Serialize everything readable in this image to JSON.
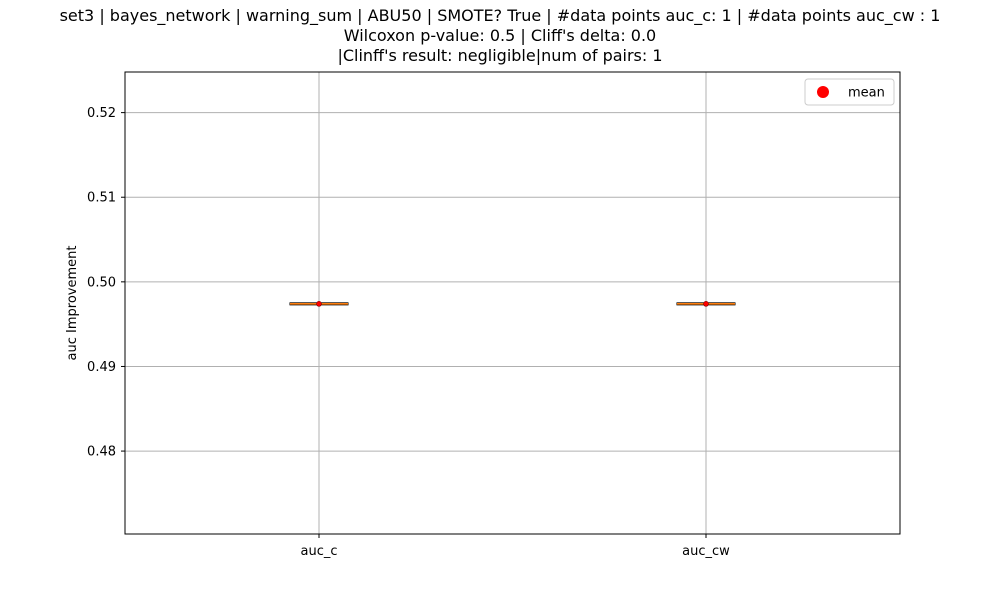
{
  "chart_data": {
    "type": "box",
    "title_lines": [
      "set3 | bayes_network | warning_sum | ABU50 | SMOTE? True | #data points auc_c: 1 | #data points auc_cw : 1",
      "Wilcoxon p-value: 0.5 | Cliff's delta: 0.0",
      "|Clinff's result: negligible|num of pairs: 1"
    ],
    "ylabel": "auc Improvement",
    "ylim": [
      0.4702,
      0.5248
    ],
    "yticks": [
      0.48,
      0.49,
      0.5,
      0.51,
      0.52
    ],
    "ytick_labels": [
      "0.48",
      "0.49",
      "0.50",
      "0.51",
      "0.52"
    ],
    "categories": [
      "auc_c",
      "auc_cw"
    ],
    "boxes": [
      {
        "category": "auc_c",
        "median": 0.4974,
        "mean": 0.4974
      },
      {
        "category": "auc_cw",
        "median": 0.4974,
        "mean": 0.4974
      }
    ],
    "grid": true,
    "legend": {
      "position": "top-right",
      "entries": [
        {
          "label": "mean",
          "color": "#ff0000",
          "marker": "circle"
        }
      ]
    },
    "colors": {
      "median": "#ff7f0e",
      "mean": "#ff0000",
      "box": "#000000",
      "grid": "#b0b0b0"
    }
  }
}
